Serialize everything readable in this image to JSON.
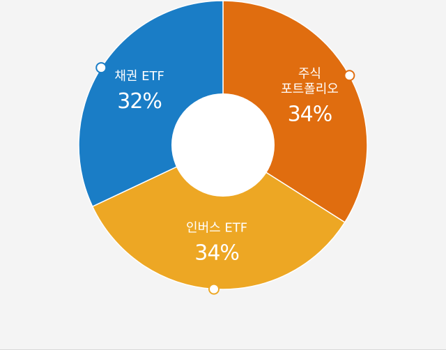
{
  "chart_data": {
    "type": "pie",
    "title": "",
    "slices": [
      {
        "label": "주식\n포트폴리오",
        "value": 34,
        "value_label": "34%",
        "color": "#e06d0f"
      },
      {
        "label": "인버스 ETF",
        "value": 34,
        "value_label": "34%",
        "color": "#eda724"
      },
      {
        "label": "채권 ETF",
        "value": 32,
        "value_label": "32%",
        "color": "#1a7dc6"
      }
    ],
    "center_label": {
      "name": "인버스 ETF",
      "value_label": "34%"
    },
    "donut": true,
    "legend": "none"
  }
}
